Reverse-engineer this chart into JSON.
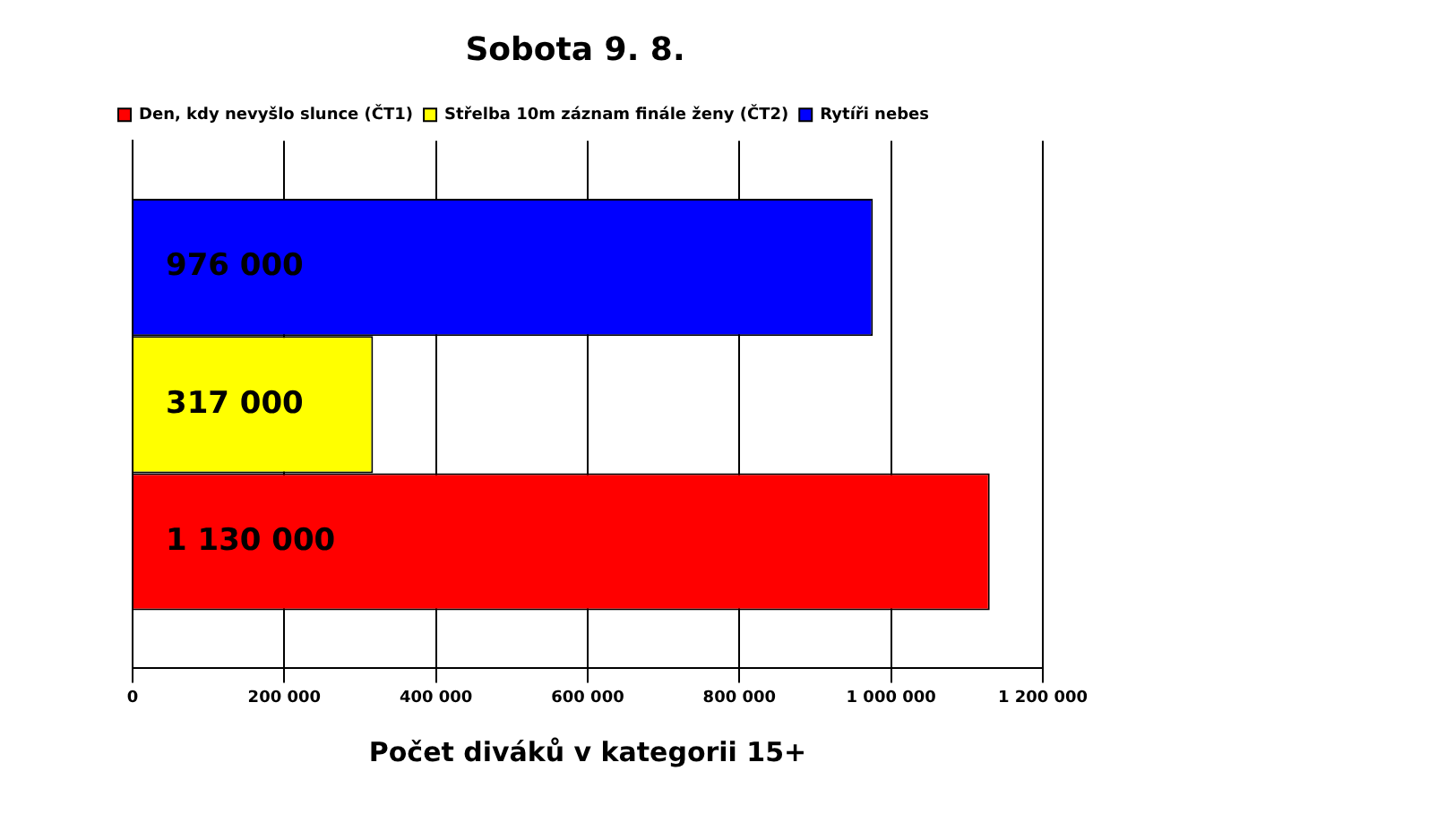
{
  "chart_data": {
    "type": "bar",
    "orientation": "horizontal",
    "title": "Sobota 9. 8.",
    "xlabel": "Počet diváků v kategorii 15+",
    "categories": [
      null
    ],
    "series": [
      {
        "name": "Den, kdy nevyšlo slunce (ČT1)",
        "color": "#ff0000",
        "values": [
          1130000
        ],
        "value_labels": [
          "1 130 000"
        ]
      },
      {
        "name": "Střelba 10m záznam finále ženy (ČT2)",
        "color": "#ffff00",
        "values": [
          317000
        ],
        "value_labels": [
          "317 000"
        ]
      },
      {
        "name": "Rytíři nebes",
        "color": "#0000ff",
        "values": [
          976000
        ],
        "value_labels": [
          "976 000"
        ]
      }
    ],
    "xlim": [
      0,
      1200000
    ],
    "xticks": [
      0,
      {
        "value": 200000,
        "label": "200 000"
      },
      {
        "value": 400000,
        "label": "400 000"
      },
      {
        "value": 600000,
        "label": "600 000"
      },
      {
        "value": 800000,
        "label": "800 000"
      },
      {
        "value": 1000000,
        "label": "1 000 000"
      },
      {
        "value": 1200000,
        "label": "1 200 000"
      }
    ],
    "grid": "x",
    "legend": "top"
  }
}
